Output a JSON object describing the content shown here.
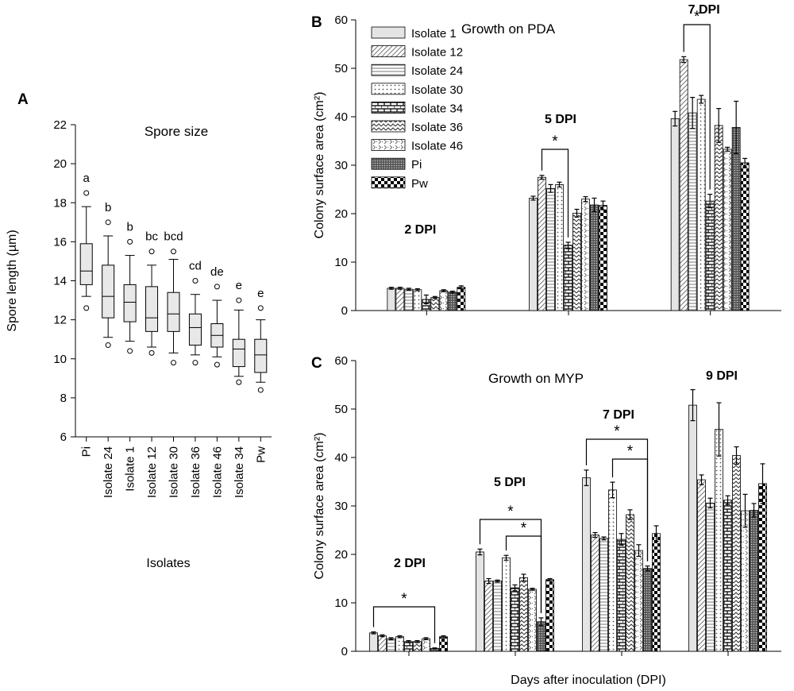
{
  "chart_data": [
    {
      "panel": "A",
      "type": "box",
      "title": "Spore size",
      "xlabel": "Isolates",
      "ylabel": "Spore length (µm)",
      "ylim": [
        6,
        22
      ],
      "yticks": [
        6,
        8,
        10,
        12,
        14,
        16,
        18,
        20,
        22
      ],
      "categories": [
        "Pi",
        "Isolate 24",
        "Isolate 1",
        "Isolate 12",
        "Isolate 30",
        "Isolate 36",
        "Isolate 46",
        "Isolate 34",
        "Pw"
      ],
      "boxes": [
        {
          "q1": 13.8,
          "median": 14.5,
          "q3": 15.9,
          "whisker_low": 13.2,
          "whisker_high": 17.8,
          "outliers": [
            12.6,
            18.5
          ],
          "letter": "a"
        },
        {
          "q1": 12.1,
          "median": 13.2,
          "q3": 14.8,
          "whisker_low": 11.1,
          "whisker_high": 16.3,
          "outliers": [
            10.7,
            17.0
          ],
          "letter": "b"
        },
        {
          "q1": 11.9,
          "median": 12.9,
          "q3": 13.8,
          "whisker_low": 10.9,
          "whisker_high": 15.3,
          "outliers": [
            10.4,
            16.0
          ],
          "letter": "b"
        },
        {
          "q1": 11.4,
          "median": 12.1,
          "q3": 13.7,
          "whisker_low": 10.6,
          "whisker_high": 14.8,
          "outliers": [
            10.3,
            15.5
          ],
          "letter": "bc"
        },
        {
          "q1": 11.4,
          "median": 12.3,
          "q3": 13.4,
          "whisker_low": 10.3,
          "whisker_high": 15.1,
          "outliers": [
            9.8,
            15.5
          ],
          "letter": "bcd"
        },
        {
          "q1": 10.7,
          "median": 11.6,
          "q3": 12.3,
          "whisker_low": 10.2,
          "whisker_high": 13.3,
          "outliers": [
            9.8,
            14.0
          ],
          "letter": "cd"
        },
        {
          "q1": 10.6,
          "median": 11.2,
          "q3": 11.8,
          "whisker_low": 10.1,
          "whisker_high": 13.0,
          "outliers": [
            9.7,
            13.7
          ],
          "letter": "de"
        },
        {
          "q1": 9.6,
          "median": 10.5,
          "q3": 11.0,
          "whisker_low": 9.1,
          "whisker_high": 12.5,
          "outliers": [
            8.8,
            13.0
          ],
          "letter": "e"
        },
        {
          "q1": 9.3,
          "median": 10.2,
          "q3": 11.0,
          "whisker_low": 8.8,
          "whisker_high": 12.0,
          "outliers": [
            8.4,
            12.6
          ],
          "letter": "e"
        }
      ]
    },
    {
      "panel": "B",
      "type": "bar",
      "title": "Growth on PDA",
      "xlabel": "",
      "ylabel": "Colony surface area (cm²)",
      "ylim": [
        0,
        60
      ],
      "yticks": [
        0,
        10,
        20,
        30,
        40,
        50,
        60
      ],
      "groups": [
        "2 DPI",
        "5 DPI",
        "7 DPI"
      ],
      "series": [
        {
          "name": "Isolate 1",
          "values": [
            4.6,
            23.2,
            39.6
          ],
          "errors": [
            0.2,
            0.4,
            1.5
          ]
        },
        {
          "name": "Isolate 12",
          "values": [
            4.6,
            27.5,
            51.8
          ],
          "errors": [
            0.2,
            0.4,
            0.6
          ]
        },
        {
          "name": "Isolate 24",
          "values": [
            4.4,
            25.2,
            40.8
          ],
          "errors": [
            0.2,
            0.8,
            3.2
          ]
        },
        {
          "name": "Isolate 30",
          "values": [
            4.3,
            26.0,
            43.6
          ],
          "errors": [
            0.2,
            0.5,
            0.8
          ]
        },
        {
          "name": "Isolate 34",
          "values": [
            2.3,
            13.5,
            22.6
          ],
          "errors": [
            0.9,
            0.6,
            1.4
          ]
        },
        {
          "name": "Isolate 36",
          "values": [
            2.7,
            20.1,
            38.2
          ],
          "errors": [
            0.2,
            0.8,
            3.5
          ]
        },
        {
          "name": "Isolate 46",
          "values": [
            4.1,
            23.0,
            33.3
          ],
          "errors": [
            0.2,
            0.5,
            0.4
          ]
        },
        {
          "name": "Pi",
          "values": [
            3.8,
            21.8,
            37.8
          ],
          "errors": [
            0.2,
            1.4,
            5.4
          ]
        },
        {
          "name": "Pw",
          "values": [
            4.8,
            21.7,
            30.5
          ],
          "errors": [
            0.3,
            0.9,
            0.9
          ]
        }
      ],
      "annotations": [
        {
          "group": "5 DPI",
          "from": "Isolate 12",
          "to": "Isolate 34",
          "label": "*"
        },
        {
          "group": "7 DPI",
          "from": "Isolate 12",
          "to": "Isolate 34",
          "label": "*"
        }
      ]
    },
    {
      "panel": "C",
      "type": "bar",
      "title": "Growth on MYP",
      "xlabel": "Days after inoculation (DPI)",
      "ylabel": "Colony surface area (cm²)",
      "ylim": [
        0,
        60
      ],
      "yticks": [
        0,
        10,
        20,
        30,
        40,
        50,
        60
      ],
      "groups": [
        "2 DPI",
        "5 DPI",
        "7 DPI",
        "9 DPI"
      ],
      "series": [
        {
          "name": "Isolate 1",
          "values": [
            3.8,
            20.5,
            35.8,
            50.8
          ],
          "errors": [
            0.2,
            0.6,
            1.6,
            3.2
          ]
        },
        {
          "name": "Isolate 12",
          "values": [
            3.2,
            14.5,
            24.0,
            35.4
          ],
          "errors": [
            0.2,
            0.5,
            0.5,
            1.0
          ]
        },
        {
          "name": "Isolate 24",
          "values": [
            2.6,
            14.5,
            23.3,
            30.6
          ],
          "errors": [
            0.2,
            0.2,
            0.3,
            1.0
          ]
        },
        {
          "name": "Isolate 30",
          "values": [
            3.0,
            19.3,
            33.3,
            45.8
          ],
          "errors": [
            0.2,
            0.5,
            1.6,
            5.5
          ]
        },
        {
          "name": "Isolate 34",
          "values": [
            2.0,
            13.1,
            23.1,
            31.2
          ],
          "errors": [
            0.2,
            0.6,
            1.2,
            0.9
          ]
        },
        {
          "name": "Isolate 36",
          "values": [
            2.0,
            15.2,
            28.2,
            40.4
          ],
          "errors": [
            0.2,
            0.7,
            1.0,
            1.8
          ]
        },
        {
          "name": "Isolate 46",
          "values": [
            2.6,
            12.8,
            20.8,
            29.0
          ],
          "errors": [
            0.2,
            0.2,
            1.2,
            3.4
          ]
        },
        {
          "name": "Pi",
          "values": [
            0.6,
            6.1,
            17.1,
            29.1
          ],
          "errors": [
            0.1,
            0.8,
            0.5,
            1.4
          ]
        },
        {
          "name": "Pw",
          "values": [
            3.0,
            14.8,
            24.3,
            34.6
          ],
          "errors": [
            0.2,
            0.2,
            1.6,
            4.1
          ]
        }
      ],
      "annotations": [
        {
          "group": "2 DPI",
          "from": "Isolate 1",
          "to": "Pi",
          "label": "*"
        },
        {
          "group": "5 DPI",
          "from": "Isolate 1",
          "to": "Pi",
          "label": "*"
        },
        {
          "group": "5 DPI",
          "from": "Isolate 30",
          "to": "Pi",
          "label": "*"
        },
        {
          "group": "7 DPI",
          "from": "Isolate 1",
          "to": "Pi",
          "label": "*"
        },
        {
          "group": "7 DPI",
          "from": "Isolate 30",
          "to": "Pi",
          "label": "*"
        }
      ]
    }
  ]
}
